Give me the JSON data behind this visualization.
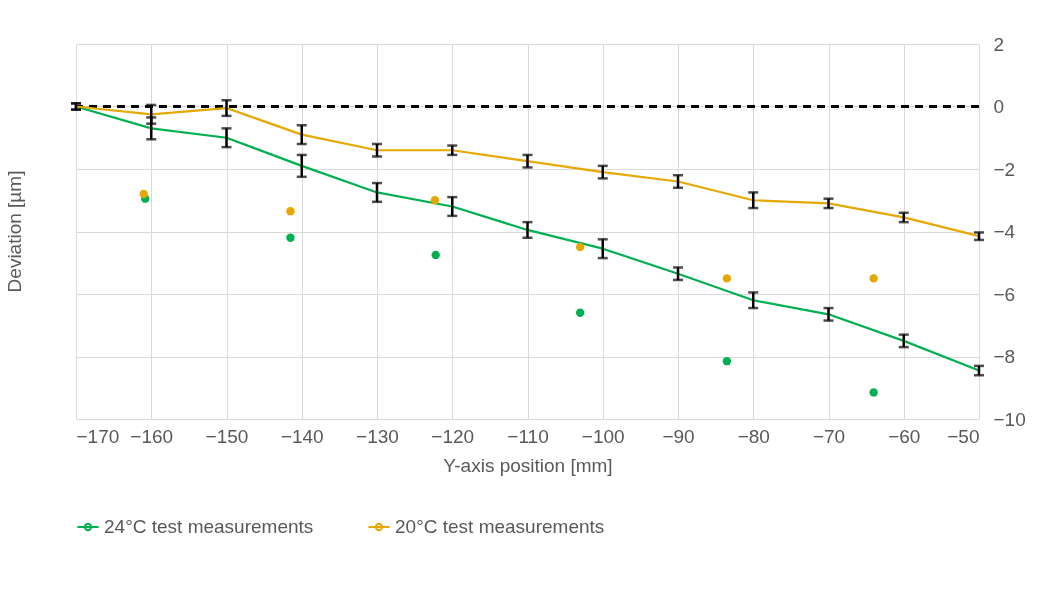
{
  "chart_data": {
    "type": "line",
    "xlabel": "Y-axis position [mm]",
    "ylabel": "Deviation [µm]",
    "x": [
      -170,
      -160,
      -150,
      -140,
      -130,
      -120,
      -110,
      -100,
      -90,
      -80,
      -70,
      -60,
      -50
    ],
    "series": [
      {
        "name": "24°C test measurements",
        "color": "#00b050",
        "values": [
          0,
          -0.7,
          -1.0,
          -1.9,
          -2.75,
          -3.2,
          -3.95,
          -4.55,
          -5.35,
          -6.2,
          -6.65,
          -7.5,
          -8.45
        ],
        "errors": [
          0.1,
          0.35,
          0.3,
          0.35,
          0.3,
          0.3,
          0.25,
          0.3,
          0.2,
          0.25,
          0.2,
          0.2,
          0.15
        ]
      },
      {
        "name": "20°C test measurements",
        "color": "#e6a800",
        "values": [
          0,
          -0.25,
          -0.05,
          -0.9,
          -1.4,
          -1.4,
          -1.75,
          -2.1,
          -2.4,
          -3.0,
          -3.1,
          -3.55,
          -4.15
        ],
        "errors": [
          0.1,
          0.3,
          0.25,
          0.3,
          0.2,
          0.15,
          0.2,
          0.2,
          0.2,
          0.25,
          0.15,
          0.15,
          0.12
        ]
      },
      {
        "type": "scatter",
        "color": "#00b050",
        "marker": "circle",
        "x": [
          -160.8,
          -141.5,
          -122.2,
          -103,
          -83.5,
          -64
        ],
        "values": [
          -2.95,
          -4.2,
          -4.75,
          -6.6,
          -8.15,
          -9.15
        ]
      },
      {
        "type": "scatter",
        "color": "#e6a800",
        "marker": "circle",
        "x": [
          -161,
          -141.5,
          -122.3,
          -103,
          -83.5,
          -64
        ],
        "values": [
          -2.8,
          -3.35,
          -3.0,
          -4.5,
          -5.5,
          -5.5
        ]
      }
    ],
    "xlim": [
      -170,
      -50
    ],
    "xticks": [
      -170,
      -160,
      -150,
      -140,
      -130,
      -120,
      -110,
      -100,
      -90,
      -80,
      -70,
      -60,
      -50
    ],
    "ylim": [
      -10,
      2
    ],
    "yticks": [
      -10,
      -8,
      -6,
      -4,
      -2,
      0,
      2
    ],
    "grid": true,
    "legend": "bottom",
    "marker": "none",
    "ref_lines": [
      {
        "axis": "y",
        "value": 0,
        "color": "#000000",
        "line_style": "dashed"
      }
    ]
  }
}
